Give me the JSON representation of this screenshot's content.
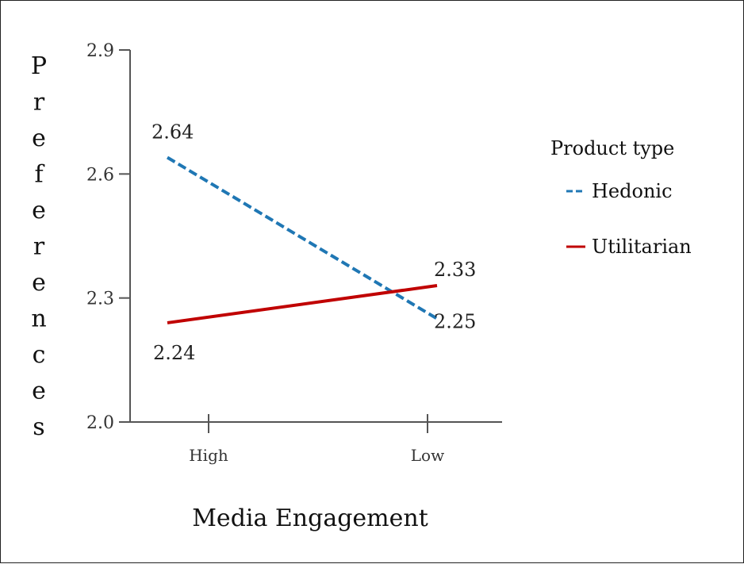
{
  "chart_data": {
    "type": "line",
    "categories": [
      "High",
      "Low"
    ],
    "ylabel": "Preferences",
    "xlabel": "Media Engagement",
    "ylim": [
      2.0,
      2.9
    ],
    "yticks": [
      "2.0",
      "2.3",
      "2.6",
      "2.9"
    ],
    "legend": {
      "title": "Product type",
      "position": "right"
    },
    "series": [
      {
        "name": "Hedonic",
        "values": [
          2.64,
          2.25
        ],
        "labels": [
          "2.64",
          "2.25"
        ],
        "color": "#1f77b4",
        "style": "dashed"
      },
      {
        "name": "Utilitarian",
        "values": [
          2.24,
          2.33
        ],
        "labels": [
          "2.24",
          "2.33"
        ],
        "color": "#c00000",
        "style": "solid"
      }
    ]
  }
}
